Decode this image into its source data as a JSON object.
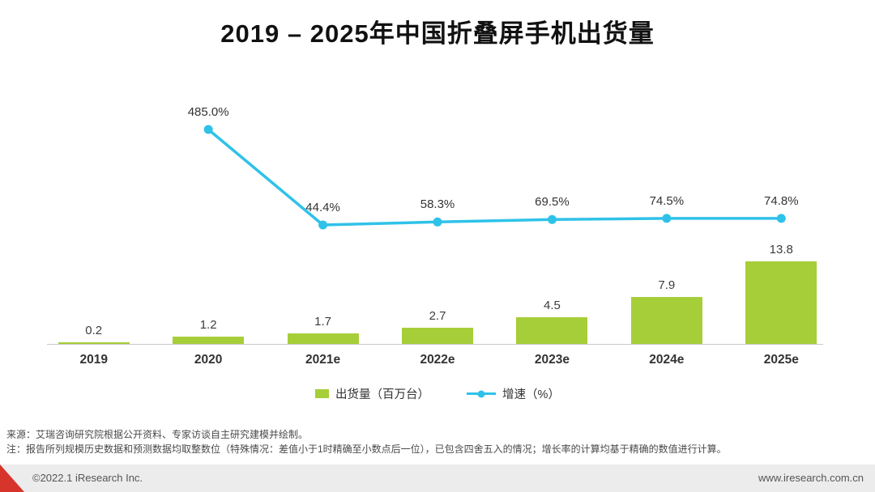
{
  "header": {
    "title": "2019 – 2025年中国折叠屏手机出货量"
  },
  "colors": {
    "bar_green": "#a6ce39",
    "line_cyan": "#2fc2e9",
    "accent_red": "#d7342b",
    "footer_bg": "#ececec"
  },
  "chart_data": {
    "type": "bar",
    "title": "2019 – 2025年中国折叠屏手机出货量",
    "categories": [
      "2019",
      "2020",
      "2021e",
      "2022e",
      "2023e",
      "2024e",
      "2025e"
    ],
    "series": [
      {
        "name": "出货量（百万台）",
        "type": "bar",
        "values": [
          0.2,
          1.2,
          1.7,
          2.7,
          4.5,
          7.9,
          13.8
        ],
        "labels": [
          "0.2",
          "1.2",
          "1.7",
          "2.7",
          "4.5",
          "7.9",
          "13.8"
        ],
        "color": "#a6ce39"
      },
      {
        "name": "增速（%）",
        "type": "line",
        "start_index": 1,
        "values": [
          485.0,
          44.4,
          58.3,
          69.5,
          74.5,
          74.8
        ],
        "labels": [
          "485.0%",
          "44.4%",
          "58.3%",
          "69.5%",
          "74.5%",
          "74.8%"
        ],
        "color": "#2fc2e9"
      }
    ],
    "xlabel": "",
    "ylabel": "",
    "legend_position": "bottom",
    "grid": false
  },
  "legend": {
    "shipments_label": "出货量（百万台）",
    "growth_label": "增速（%）"
  },
  "footnotes": {
    "source": "来源：艾瑞咨询研究院根据公开资料、专家访谈自主研究建模并绘制。",
    "note": "注：报告所列规模历史数据和预测数据均取整数位（特殊情况：差值小于1时精确至小数点后一位），已包含四舍五入的情况；增长率的计算均基于精确的数值进行计算。"
  },
  "footer": {
    "copyright": "©2022.1 iResearch Inc.",
    "website": "www.iresearch.com.cn"
  }
}
